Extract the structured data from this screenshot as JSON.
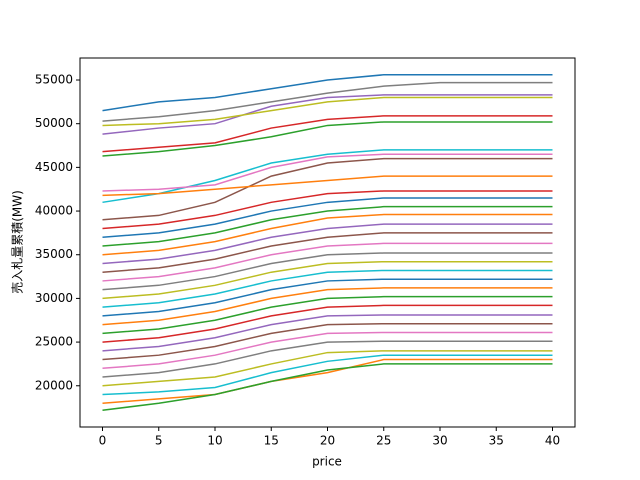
{
  "chart_data": {
    "type": "line",
    "x_label": "price",
    "y_label": "売入札量累積(MW)",
    "x": [
      0,
      5,
      10,
      15,
      20,
      25,
      30,
      35,
      40
    ],
    "xlim": [
      -2,
      42
    ],
    "xticks": [
      0,
      5,
      10,
      15,
      20,
      25,
      30,
      35,
      40
    ],
    "ylim": [
      15280,
      57520
    ],
    "yticks": [
      20000,
      25000,
      30000,
      35000,
      40000,
      45000,
      50000,
      55000
    ],
    "series": [
      {
        "color": "#1f77b4",
        "values": [
          51500,
          52500,
          53000,
          54000,
          55000,
          55600,
          55600,
          55600,
          55600
        ]
      },
      {
        "color": "#7f7f7f",
        "values": [
          50300,
          50800,
          51500,
          52500,
          53500,
          54300,
          54700,
          54700,
          54700
        ]
      },
      {
        "color": "#9467bd",
        "values": [
          48800,
          49500,
          50000,
          52000,
          53000,
          53300,
          53300,
          53300,
          53300
        ]
      },
      {
        "color": "#bcbd22",
        "values": [
          49800,
          50000,
          50500,
          51500,
          52500,
          53000,
          53000,
          53000,
          53000
        ]
      },
      {
        "color": "#d62728",
        "values": [
          46800,
          47300,
          47800,
          49500,
          50500,
          50900,
          50900,
          50900,
          50900
        ]
      },
      {
        "color": "#2ca02c",
        "values": [
          46300,
          46800,
          47500,
          48500,
          49800,
          50200,
          50200,
          50200,
          50200
        ]
      },
      {
        "color": "#17becf",
        "values": [
          41000,
          42000,
          43500,
          45500,
          46500,
          47000,
          47000,
          47000,
          47000
        ]
      },
      {
        "color": "#e377c2",
        "values": [
          42300,
          42500,
          43000,
          45000,
          46200,
          46500,
          46500,
          46500,
          46500
        ]
      },
      {
        "color": "#8c564b",
        "values": [
          39000,
          39500,
          41000,
          44000,
          45500,
          46000,
          46000,
          46000,
          46000
        ]
      },
      {
        "color": "#ff7f0e",
        "values": [
          41800,
          42000,
          42500,
          43000,
          43500,
          44000,
          44000,
          44000,
          44000
        ]
      },
      {
        "color": "#d62728",
        "values": [
          38000,
          38500,
          39500,
          41000,
          42000,
          42300,
          42300,
          42300,
          42300
        ]
      },
      {
        "color": "#1f77b4",
        "values": [
          37000,
          37500,
          38500,
          40000,
          41000,
          41500,
          41500,
          41500,
          41500
        ]
      },
      {
        "color": "#2ca02c",
        "values": [
          36000,
          36500,
          37500,
          39000,
          40000,
          40500,
          40500,
          40500,
          40500
        ]
      },
      {
        "color": "#ff7f0e",
        "values": [
          35000,
          35500,
          36500,
          38000,
          39200,
          39600,
          39600,
          39600,
          39600
        ]
      },
      {
        "color": "#9467bd",
        "values": [
          34000,
          34500,
          35500,
          37000,
          38000,
          38500,
          38500,
          38500,
          38500
        ]
      },
      {
        "color": "#8c564b",
        "values": [
          33000,
          33500,
          34500,
          36000,
          37000,
          37500,
          37500,
          37500,
          37500
        ]
      },
      {
        "color": "#e377c2",
        "values": [
          32000,
          32500,
          33500,
          35000,
          36000,
          36300,
          36300,
          36300,
          36300
        ]
      },
      {
        "color": "#7f7f7f",
        "values": [
          31000,
          31500,
          32500,
          34000,
          35000,
          35200,
          35200,
          35200,
          35200
        ]
      },
      {
        "color": "#bcbd22",
        "values": [
          30000,
          30500,
          31500,
          33000,
          34000,
          34200,
          34200,
          34200,
          34200
        ]
      },
      {
        "color": "#17becf",
        "values": [
          29000,
          29500,
          30500,
          32000,
          33000,
          33200,
          33200,
          33200,
          33200
        ]
      },
      {
        "color": "#1f77b4",
        "values": [
          28000,
          28500,
          29500,
          31000,
          32000,
          32200,
          32200,
          32200,
          32200
        ]
      },
      {
        "color": "#ff7f0e",
        "values": [
          27000,
          27500,
          28500,
          30000,
          31000,
          31200,
          31200,
          31200,
          31200
        ]
      },
      {
        "color": "#2ca02c",
        "values": [
          26000,
          26500,
          27500,
          29000,
          30000,
          30200,
          30200,
          30200,
          30200
        ]
      },
      {
        "color": "#d62728",
        "values": [
          25000,
          25500,
          26500,
          28000,
          29000,
          29200,
          29200,
          29200,
          29200
        ]
      },
      {
        "color": "#9467bd",
        "values": [
          24000,
          24500,
          25500,
          27000,
          28000,
          28100,
          28100,
          28100,
          28100
        ]
      },
      {
        "color": "#8c564b",
        "values": [
          23000,
          23500,
          24500,
          26000,
          27000,
          27100,
          27100,
          27100,
          27100
        ]
      },
      {
        "color": "#e377c2",
        "values": [
          22000,
          22500,
          23500,
          25000,
          26000,
          26100,
          26100,
          26100,
          26100
        ]
      },
      {
        "color": "#7f7f7f",
        "values": [
          21000,
          21500,
          22500,
          24000,
          25000,
          25100,
          25100,
          25100,
          25100
        ]
      },
      {
        "color": "#bcbd22",
        "values": [
          20000,
          20500,
          21000,
          22500,
          23800,
          24000,
          24000,
          24000,
          24000
        ]
      },
      {
        "color": "#17becf",
        "values": [
          19000,
          19300,
          19800,
          21500,
          22800,
          23500,
          23500,
          23500,
          23500
        ]
      },
      {
        "color": "#ff7f0e",
        "values": [
          18000,
          18500,
          19000,
          20500,
          21500,
          23000,
          23000,
          23000,
          23000
        ]
      },
      {
        "color": "#2ca02c",
        "values": [
          17200,
          18000,
          19000,
          20500,
          21800,
          22500,
          22500,
          22500,
          22500
        ]
      }
    ]
  }
}
